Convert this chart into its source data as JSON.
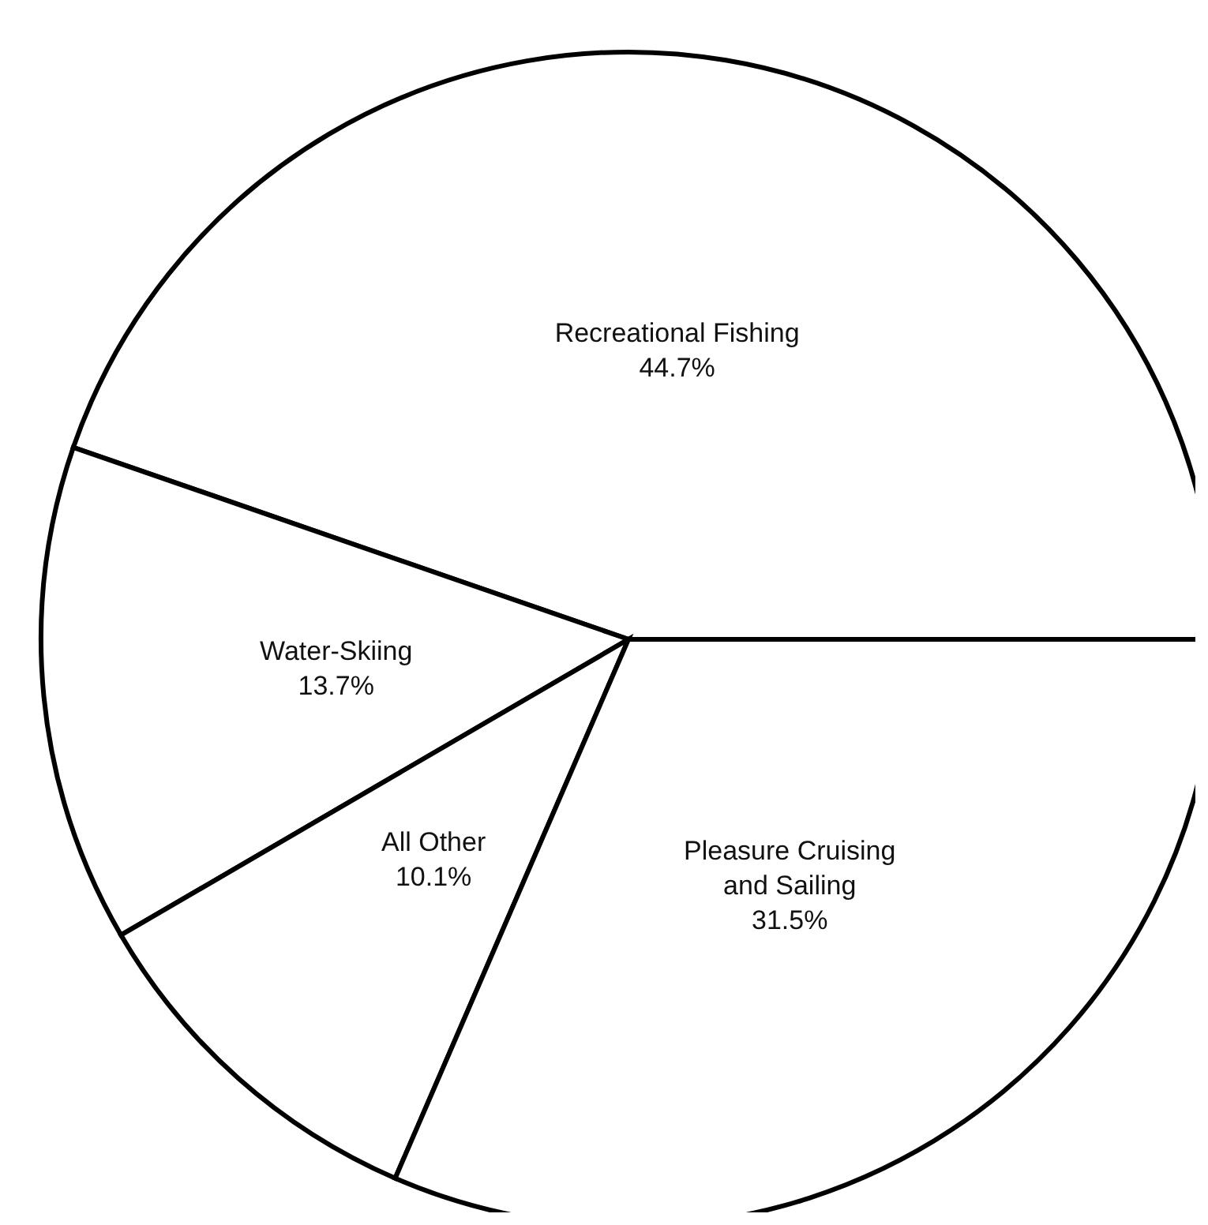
{
  "chart_data": {
    "type": "pie",
    "categories": [
      "Recreational Fishing",
      "Water-Skiing",
      "All Other",
      "Pleasure Cruising and Sailing"
    ],
    "values": [
      44.7,
      13.7,
      10.1,
      31.5
    ],
    "value_labels": [
      "44.7%",
      "13.7%",
      "10.1%",
      "31.5%"
    ],
    "colors": [
      "#ffffff",
      "#ffffff",
      "#ffffff",
      "#ffffff"
    ],
    "legend": false
  }
}
